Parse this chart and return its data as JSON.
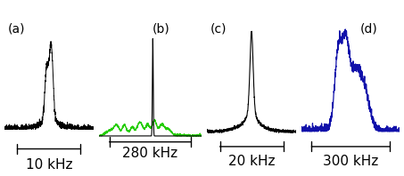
{
  "panels": [
    {
      "label": "(a)",
      "xlabel": "10 kHz",
      "color": "#000000"
    },
    {
      "label": "(b)",
      "xlabel": "280 kHz",
      "color_main": "#000000",
      "color_base": "#22cc00"
    },
    {
      "label": "(c)",
      "xlabel": "20 kHz",
      "color": "#000000"
    },
    {
      "label": "(d)",
      "xlabel": "300 kHz",
      "color": "#1111aa"
    }
  ],
  "background_color": "#ffffff",
  "label_fontsize": 10,
  "xlabel_fontsize": 11
}
